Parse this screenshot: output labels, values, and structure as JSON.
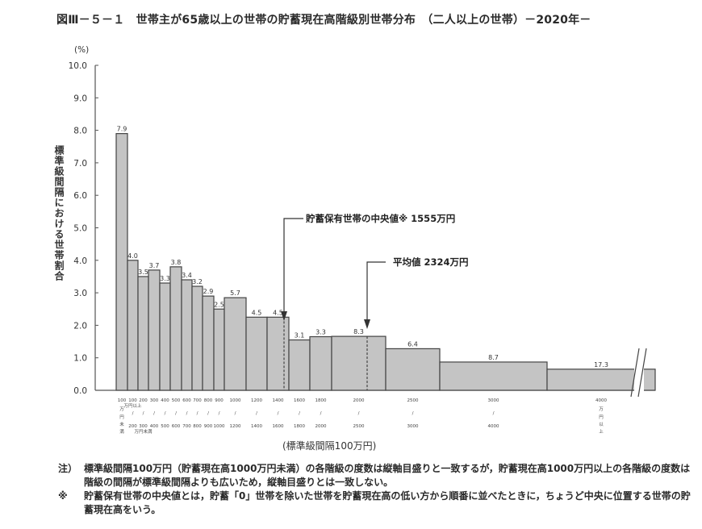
{
  "title": "図Ⅲ－５－１　世帯主が65歳以上の世帯の貯蓄現在高階級別世帯分布　（二人以上の世帯）－2020年－",
  "y_unit": "(%)",
  "y_axis_label": "標準級間隔における世帯割合",
  "x_axis_label": "(標準級間隔100万円)",
  "annotations": {
    "median": "貯蓄保有世帯の中央値※ 1555万円",
    "mean": "平均値 2324万円"
  },
  "notes": [
    {
      "mark": "注）",
      "text": "標準級間隔100万円（貯蓄現在高1000万円未満）の各階級の度数は縦軸目盛りと一致するが，貯蓄現在高1000万円以上の各階級の度数は階級の間隔が標準級間隔よりも広いため，縦軸目盛りとは一致しない。"
    },
    {
      "mark": "※",
      "text": "貯蓄保有世帯の中央値とは，貯蓄「0」世帯を除いた世帯を貯蓄現在高の低い方から順番に並べたときに，ちょうど中央に位置する世帯の貯蓄現在高をいう。"
    }
  ],
  "chart_data": {
    "type": "bar",
    "title": "図Ⅲ－５－１　世帯主が65歳以上の世帯の貯蓄現在高階級別世帯分布　（二人以上の世帯）－2020年－",
    "xlabel": "(標準級間隔100万円)",
    "ylabel": "標準級間隔における世帯割合 (%)",
    "ylim": [
      0,
      10
    ],
    "yticks": [
      "0.0",
      "1.0",
      "2.0",
      "3.0",
      "4.0",
      "5.0",
      "6.0",
      "7.0",
      "8.0",
      "9.0",
      "10.0"
    ],
    "grid": false,
    "categories": [
      "100万円未満",
      "100～200",
      "200～300",
      "300～400",
      "400～500",
      "500～600",
      "600～700",
      "700～800",
      "800～900",
      "900～1000",
      "1000～1200",
      "1200～1400",
      "1400～1600",
      "1600～1800",
      "1800～2000",
      "2000～2500",
      "2500～3000",
      "3000～4000",
      "4000万円以上"
    ],
    "values": [
      7.9,
      4.0,
      3.5,
      3.7,
      3.3,
      3.8,
      3.4,
      3.2,
      2.9,
      2.5,
      5.7,
      4.5,
      4.5,
      3.1,
      3.3,
      8.3,
      6.4,
      8.7,
      17.3
    ],
    "bar_heights_per_100man": [
      7.9,
      4.0,
      3.5,
      3.7,
      3.3,
      3.8,
      3.4,
      3.2,
      2.9,
      2.5,
      2.85,
      2.25,
      2.25,
      1.55,
      1.65,
      1.66,
      1.28,
      0.87,
      0.65
    ],
    "x_bounds": [
      [
        144,
        158
      ],
      [
        158,
        171
      ],
      [
        171,
        184
      ],
      [
        184,
        198
      ],
      [
        198,
        211
      ],
      [
        211,
        225
      ],
      [
        225,
        238
      ],
      [
        238,
        251
      ],
      [
        251,
        265
      ],
      [
        265,
        278
      ],
      [
        278,
        305
      ],
      [
        305,
        331
      ],
      [
        331,
        358
      ],
      [
        358,
        384
      ],
      [
        384,
        411
      ],
      [
        411,
        478
      ],
      [
        478,
        545
      ],
      [
        545,
        678
      ],
      [
        678,
        812
      ]
    ],
    "tick_labels": [
      {
        "top": "100",
        "mid": "万",
        "mid2": "円",
        "bot": "未",
        "bot2": "満"
      },
      {
        "top": "100",
        "note_top": "万円以上",
        "mid": "/",
        "bot": "200"
      },
      {
        "top": "200",
        "mid": "/",
        "bot": "300",
        "note_bot": "万円未満"
      },
      {
        "top": "300",
        "mid": "/",
        "bot": "400"
      },
      {
        "top": "400",
        "mid": "/",
        "bot": "500"
      },
      {
        "top": "500",
        "mid": "/",
        "bot": "600"
      },
      {
        "top": "600",
        "mid": "/",
        "bot": "700"
      },
      {
        "top": "700",
        "mid": "/",
        "bot": "800"
      },
      {
        "top": "800",
        "mid": "/",
        "bot": "900"
      },
      {
        "top": "900",
        "mid": "/",
        "bot": "1000"
      },
      {
        "top": "1000",
        "mid": "/",
        "bot": "1200"
      },
      {
        "top": "1200",
        "mid": "/",
        "bot": "1400"
      },
      {
        "top": "1400",
        "mid": "/",
        "bot": "1600"
      },
      {
        "top": "1600",
        "mid": "/",
        "bot": "1800"
      },
      {
        "top": "1800",
        "mid": "/",
        "bot": "2000"
      },
      {
        "top": "2000",
        "mid": "/",
        "bot": "2500"
      },
      {
        "top": "2500",
        "mid": "/",
        "bot": "3000"
      },
      {
        "top": "3000",
        "mid": "/",
        "bot": "4000"
      },
      {
        "top": "4000",
        "mid": "万",
        "mid2": "円",
        "bot": "以",
        "bot2": "上"
      }
    ],
    "median_value": 1555,
    "mean_value": 2324,
    "bar_color": "#c4c4c4",
    "edge_color": "#444444"
  }
}
